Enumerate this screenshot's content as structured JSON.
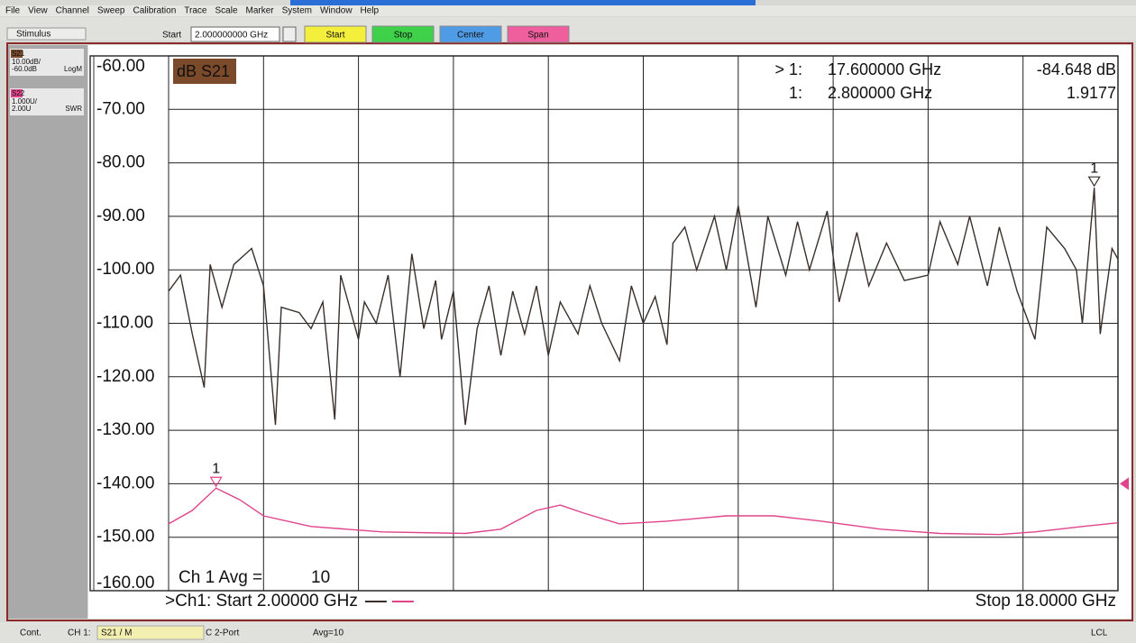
{
  "menu": [
    "File",
    "View",
    "Channel",
    "Sweep",
    "Calibration",
    "Trace",
    "Scale",
    "Marker",
    "System",
    "Window",
    "Help"
  ],
  "toolbar": {
    "label": "Stimulus",
    "field_label": "Start",
    "field_value": "2.000000000 GHz",
    "buttons": [
      {
        "text": "Start",
        "color": "#f4ee3c"
      },
      {
        "text": "Stop",
        "color": "#3fd14a"
      },
      {
        "text": "Center",
        "color": "#4f9be6"
      },
      {
        "text": "Span",
        "color": "#ef5f9e"
      }
    ]
  },
  "trace_panel": [
    {
      "name": "S21",
      "scale": "10.00dB/",
      "ref": "-60.0dB",
      "format": "LogM",
      "color": "#7a4a2a"
    },
    {
      "name": "S22",
      "scale": "1.000U/",
      "ref": "2.00U",
      "format": "SWR",
      "color": "#e0448c"
    }
  ],
  "chart_data": {
    "type": "line",
    "trace_title": "dB S21",
    "xlim": [
      2,
      18
    ],
    "ylim": [
      -160,
      -60
    ],
    "y2lim": [
      0,
      10
    ],
    "yticks": [
      {
        "value": -60,
        "label": "-60.00"
      },
      {
        "value": -70,
        "label": "-70.00"
      },
      {
        "value": -80,
        "label": "-80.00"
      },
      {
        "value": -90,
        "label": "-90.00"
      },
      {
        "value": -100,
        "label": "-100.00"
      },
      {
        "value": -110,
        "label": "-110.00"
      },
      {
        "value": -120,
        "label": "-120.00"
      },
      {
        "value": -130,
        "label": "-130.00"
      },
      {
        "value": -140,
        "label": "-140.00"
      },
      {
        "value": -150,
        "label": "-150.00"
      },
      {
        "value": -160,
        "label": "-160.00"
      }
    ],
    "xticks": [
      2,
      3.6,
      5.2,
      6.8,
      8.4,
      10,
      11.6,
      13.2,
      14.8,
      16.4,
      18
    ],
    "grid": true,
    "series": [
      {
        "name": "S21",
        "color": "#3a302b",
        "x": [
          2.0,
          2.2,
          2.4,
          2.6,
          2.7,
          2.9,
          3.1,
          3.3,
          3.4,
          3.6,
          3.8,
          3.9,
          4.2,
          4.4,
          4.6,
          4.8,
          4.9,
          5.2,
          5.3,
          5.5,
          5.7,
          5.9,
          6.1,
          6.3,
          6.5,
          6.6,
          6.8,
          7.0,
          7.2,
          7.4,
          7.6,
          7.8,
          8.0,
          8.2,
          8.4,
          8.6,
          8.9,
          9.1,
          9.3,
          9.6,
          9.8,
          10.0,
          10.2,
          10.4,
          10.5,
          10.7,
          10.9,
          11.2,
          11.4,
          11.6,
          11.9,
          12.1,
          12.4,
          12.6,
          12.8,
          13.1,
          13.3,
          13.6,
          13.8,
          14.1,
          14.4,
          14.8,
          15.0,
          15.3,
          15.5,
          15.8,
          16.0,
          16.3,
          16.6,
          16.8,
          17.1,
          17.3,
          17.4,
          17.6,
          17.7,
          17.9,
          18.0
        ],
        "values": [
          -104,
          -101,
          -112,
          -122,
          -99,
          -107,
          -99,
          -97,
          -96,
          -103,
          -129,
          -107,
          -108,
          -111,
          -106,
          -128,
          -101,
          -113,
          -106,
          -110,
          -101,
          -120,
          -97,
          -111,
          -102,
          -113,
          -104,
          -129,
          -111,
          -103,
          -116,
          -104,
          -112,
          -103,
          -116,
          -106,
          -112,
          -103,
          -110,
          -117,
          -103,
          -110,
          -105,
          -114,
          -95,
          -92,
          -100,
          -90,
          -100,
          -88,
          -107,
          -90,
          -101,
          -91,
          -100,
          -89,
          -106,
          -93,
          -103,
          -95,
          -102,
          -101,
          -91,
          -99,
          -90,
          -103,
          -92,
          -104,
          -113,
          -92,
          -96,
          -100,
          -110,
          -84.648,
          -112,
          -96,
          -98
        ]
      },
      {
        "name": "S22",
        "color": "#e0448c",
        "axis": "y2",
        "x": [
          2.0,
          2.4,
          2.8,
          3.2,
          3.6,
          4.4,
          5.6,
          7.0,
          7.6,
          8.2,
          8.6,
          9.0,
          9.6,
          10.4,
          11.4,
          12.2,
          13.0,
          14.0,
          15.0,
          16.0,
          16.6,
          17.4,
          18.0
        ],
        "values": [
          1.25,
          1.5,
          1.9177,
          1.7,
          1.4,
          1.2,
          1.1,
          1.07,
          1.15,
          1.5,
          1.6,
          1.45,
          1.25,
          1.3,
          1.4,
          1.4,
          1.3,
          1.15,
          1.07,
          1.05,
          1.1,
          1.2,
          1.27
        ]
      }
    ],
    "markers": [
      {
        "prefix": "> 1:",
        "label": "1",
        "x": 17.6,
        "x_label": "17.600000 GHz",
        "value": -84.648,
        "value_label": "-84.648 dB",
        "color": "#3a302b"
      },
      {
        "prefix": "1:",
        "label": "1",
        "x": 2.8,
        "x_label": "2.800000 GHz",
        "value": 1.9177,
        "value_label": "1.9177",
        "color": "#e0448c",
        "axis": "y2"
      }
    ],
    "avg_label": "Ch 1 Avg =",
    "avg_value": "10",
    "start_label": ">Ch1: Start  2.00000 GHz",
    "stop_label": "Stop  18.0000 GHz"
  },
  "status_bar": [
    "Cont.",
    "CH 1:",
    "S21 / M",
    "C  2-Port",
    "Avg=10",
    "LCL"
  ]
}
